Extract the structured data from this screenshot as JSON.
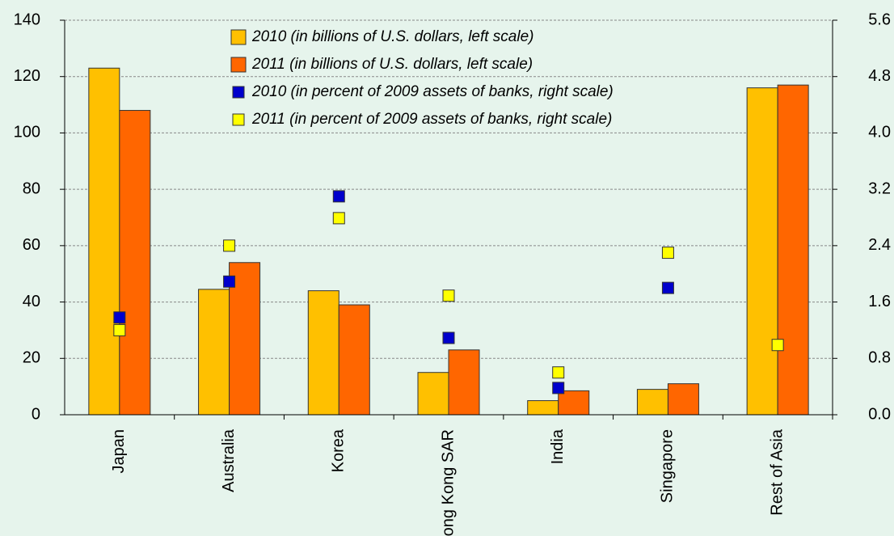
{
  "chart_data": {
    "type": "bar",
    "categories": [
      "Japan",
      "Australia",
      "Korea",
      "Hong Kong SAR",
      "India",
      "Singapore",
      "Rest of Asia"
    ],
    "series": [
      {
        "name": "2010 (in billions of U.S. dollars, left scale)",
        "color": "#ffc000",
        "type": "bar",
        "values": [
          123,
          44.5,
          44,
          15,
          5,
          9,
          116
        ]
      },
      {
        "name": "2011 (in billions of U.S. dollars, left scale)",
        "color": "#ff6600",
        "type": "bar",
        "values": [
          108,
          54,
          39,
          23,
          8.5,
          11,
          117
        ]
      },
      {
        "name": "2010 (in percent of 2009 assets of banks, right scale)",
        "color": "#0000cc",
        "type": "scatter",
        "axis": "y2",
        "values": [
          1.38,
          1.89,
          3.1,
          1.09,
          0.38,
          1.8,
          null
        ]
      },
      {
        "name": "2011 (in percent of 2009 assets of banks, right scale)",
        "color": "#ffff00",
        "type": "scatter",
        "axis": "y2",
        "values": [
          1.2,
          2.4,
          2.79,
          1.69,
          0.6,
          2.3,
          0.99
        ]
      }
    ],
    "ylim": [
      0,
      140
    ],
    "yticks": [
      0,
      20,
      40,
      60,
      80,
      100,
      120,
      140
    ],
    "y2lim": [
      0,
      5.6
    ],
    "y2ticks": [
      {
        "value": 0,
        "label": "0.0"
      },
      {
        "value": 0.8,
        "label": "0.8"
      },
      {
        "value": 1.6,
        "label": "1.6"
      },
      {
        "value": 2.4,
        "label": "2.4"
      },
      {
        "value": 3.2,
        "label": "3.2"
      },
      {
        "value": 4,
        "label": "4.0"
      },
      {
        "value": 4.8,
        "label": "4.8"
      },
      {
        "value": 5.6,
        "label": "5.6"
      }
    ],
    "grid": true
  }
}
